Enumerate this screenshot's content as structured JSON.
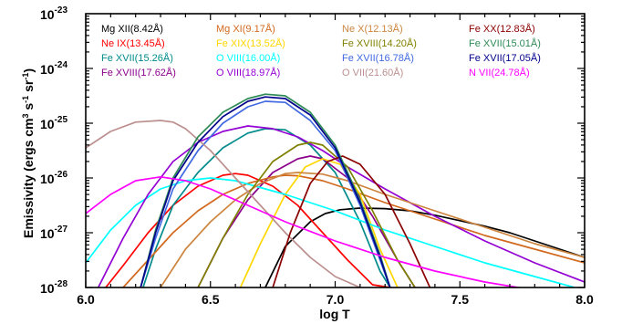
{
  "chart_data": {
    "type": "line",
    "title": "",
    "xlabel": "log T",
    "ylabel": "Emissivity (ergs cm^3 s^-1 sr^-1)",
    "ylabel_parts": {
      "main": "Emissivity (ergs cm",
      "exp3": "3",
      "mid": " s",
      "exp_m1a": "-1",
      "sp": " sr",
      "exp_m1b": "-1",
      "end": ")"
    },
    "xlim": [
      6.0,
      8.0
    ],
    "ylim_log10": [
      -28,
      -23
    ],
    "yscale": "log",
    "x_ticks": [
      {
        "value": 6.0,
        "label": "6.0"
      },
      {
        "value": 6.5,
        "label": "6.5"
      },
      {
        "value": 7.0,
        "label": "7.0"
      },
      {
        "value": 7.5,
        "label": "7.5"
      },
      {
        "value": 8.0,
        "label": "8.0"
      }
    ],
    "y_ticks": [
      {
        "exp": -28,
        "base": "10",
        "sup": "-28"
      },
      {
        "exp": -27,
        "base": "10",
        "sup": "-27"
      },
      {
        "exp": -26,
        "base": "10",
        "sup": "-26"
      },
      {
        "exp": -25,
        "base": "10",
        "sup": "-25"
      },
      {
        "exp": -24,
        "base": "10",
        "sup": "-24"
      },
      {
        "exp": -23,
        "base": "10",
        "sup": "-23"
      }
    ],
    "legend_position": "top (4 columns inside plot)",
    "series": [
      {
        "name": "Mg XII(8.42Å)",
        "color": "#000000",
        "x": [
          6.72,
          6.8,
          6.9,
          6.96,
          7.02,
          7.1,
          7.2,
          7.3,
          7.4,
          7.5,
          7.6,
          7.7,
          7.8,
          7.9,
          8.0
        ],
        "log10y": [
          -28.0,
          -27.25,
          -26.8,
          -26.65,
          -26.58,
          -26.55,
          -26.56,
          -26.6,
          -26.68,
          -26.78,
          -26.88,
          -27.0,
          -27.15,
          -27.3,
          -27.45
        ]
      },
      {
        "name": "Ne IX(13.45Å)",
        "color": "#ff0000",
        "x": [
          6.08,
          6.15,
          6.25,
          6.35,
          6.45,
          6.55,
          6.6,
          6.65,
          6.75,
          6.85,
          6.95,
          7.05,
          7.15,
          7.22
        ],
        "log10y": [
          -28.0,
          -27.6,
          -27.0,
          -26.5,
          -26.15,
          -25.95,
          -25.92,
          -25.95,
          -26.15,
          -26.5,
          -27.0,
          -27.5,
          -27.95,
          -28.0
        ]
      },
      {
        "name": "Fe XVII(15.26Å)",
        "color": "#008b8b",
        "x": [
          6.23,
          6.28,
          6.35,
          6.45,
          6.55,
          6.65,
          6.72,
          6.8,
          6.9,
          7.0,
          7.1,
          7.18,
          7.22
        ],
        "log10y": [
          -28.0,
          -27.3,
          -26.5,
          -25.9,
          -25.45,
          -25.18,
          -25.1,
          -25.12,
          -25.4,
          -25.9,
          -26.8,
          -27.7,
          -28.0
        ]
      },
      {
        "name": "Fe XVIII(17.62Å)",
        "color": "#8b008b",
        "x": [
          6.45,
          6.55,
          6.65,
          6.75,
          6.85,
          6.9,
          6.95,
          7.05,
          7.15,
          7.25,
          7.32
        ],
        "log10y": [
          -28.0,
          -27.1,
          -26.4,
          -25.9,
          -25.65,
          -25.6,
          -25.65,
          -26.0,
          -26.7,
          -27.5,
          -28.0
        ]
      },
      {
        "name": "Mg XI(9.17Å)",
        "color": "#d2691e",
        "x": [
          6.15,
          6.25,
          6.35,
          6.45,
          6.55,
          6.65,
          6.75,
          6.8,
          6.85,
          6.95,
          7.05,
          7.2,
          7.4,
          7.6,
          7.8,
          8.0
        ],
        "log10y": [
          -28.0,
          -27.5,
          -27.0,
          -26.6,
          -26.3,
          -26.1,
          -25.98,
          -25.95,
          -25.96,
          -26.05,
          -26.2,
          -26.45,
          -26.75,
          -27.05,
          -27.3,
          -27.55
        ]
      },
      {
        "name": "Fe XIX(13.52Å)",
        "color": "#ffd700",
        "x": [
          6.62,
          6.7,
          6.8,
          6.88,
          6.95,
          7.02,
          7.1,
          7.18,
          7.25
        ],
        "log10y": [
          -28.0,
          -27.2,
          -26.3,
          -25.8,
          -25.65,
          -25.75,
          -26.3,
          -27.3,
          -28.0
        ]
      },
      {
        "name": "O VIII(16.00Å)",
        "color": "#00ffff",
        "x": [
          6.0,
          6.1,
          6.2,
          6.3,
          6.4,
          6.5,
          6.6,
          6.8,
          7.0,
          7.2,
          7.4,
          7.6,
          7.8,
          8.0
        ],
        "log10y": [
          -27.55,
          -26.95,
          -26.5,
          -26.2,
          -26.05,
          -26.0,
          -26.05,
          -26.3,
          -26.6,
          -26.95,
          -27.25,
          -27.55,
          -27.8,
          -28.05
        ]
      },
      {
        "name": "O VIII(18.97Å)",
        "color": "#9400d3",
        "x": [
          6.05,
          6.15,
          6.25,
          6.35,
          6.45,
          6.55,
          6.65,
          6.75,
          6.85,
          6.95,
          7.05,
          7.2,
          7.4,
          7.6,
          7.8,
          8.0
        ],
        "log10y": [
          -28.0,
          -27.1,
          -26.3,
          -25.7,
          -25.35,
          -25.15,
          -25.05,
          -25.1,
          -25.25,
          -25.5,
          -25.8,
          -26.2,
          -26.7,
          -27.15,
          -27.55,
          -27.9
        ]
      },
      {
        "name": "Ne X(12.13Å)",
        "color": "#cd853f",
        "x": [
          6.3,
          6.4,
          6.5,
          6.6,
          6.7,
          6.8,
          6.85,
          6.95,
          7.05,
          7.2,
          7.4,
          7.6,
          7.8,
          8.0
        ],
        "log10y": [
          -28.0,
          -27.3,
          -26.8,
          -26.4,
          -26.1,
          -25.92,
          -25.9,
          -25.93,
          -26.05,
          -26.3,
          -26.6,
          -26.9,
          -27.2,
          -27.45
        ]
      },
      {
        "name": "Fe XVIII(14.20Å)",
        "color": "#808000",
        "x": [
          6.45,
          6.55,
          6.65,
          6.75,
          6.85,
          6.9,
          6.95,
          7.05,
          7.15,
          7.25,
          7.32
        ],
        "log10y": [
          -28.0,
          -27.1,
          -26.3,
          -25.7,
          -25.4,
          -25.35,
          -25.4,
          -25.8,
          -26.6,
          -27.5,
          -28.0
        ]
      },
      {
        "name": "Fe XVII(16.78Å)",
        "color": "#4169e1",
        "x": [
          6.22,
          6.28,
          6.35,
          6.45,
          6.55,
          6.65,
          6.72,
          6.8,
          6.9,
          7.0,
          7.1,
          7.18,
          7.22
        ],
        "log10y": [
          -28.0,
          -27.1,
          -26.2,
          -25.5,
          -25.0,
          -24.7,
          -24.6,
          -24.62,
          -24.95,
          -25.5,
          -26.5,
          -27.5,
          -28.0
        ]
      },
      {
        "name": "O VII(21.60Å)",
        "color": "#bc8f8f",
        "x": [
          6.0,
          6.1,
          6.2,
          6.3,
          6.35,
          6.4,
          6.5,
          6.6,
          6.7,
          6.8,
          6.9,
          7.0,
          7.1
        ],
        "log10y": [
          -25.45,
          -25.15,
          -24.98,
          -24.95,
          -24.98,
          -25.1,
          -25.5,
          -26.0,
          -26.5,
          -27.0,
          -27.45,
          -27.8,
          -28.0
        ]
      },
      {
        "name": "Fe XX(12.83Å)",
        "color": "#8b0000",
        "x": [
          6.75,
          6.82,
          6.9,
          6.97,
          7.03,
          7.1,
          7.2,
          7.3,
          7.38
        ],
        "log10y": [
          -28.0,
          -27.0,
          -26.1,
          -25.7,
          -25.6,
          -25.75,
          -26.3,
          -27.2,
          -28.0
        ]
      },
      {
        "name": "Fe XVII(15.01Å)",
        "color": "#2e8b57",
        "x": [
          6.22,
          6.28,
          6.35,
          6.45,
          6.55,
          6.65,
          6.72,
          6.8,
          6.9,
          7.0,
          7.1,
          7.18,
          7.22
        ],
        "log10y": [
          -28.0,
          -26.95,
          -26.0,
          -25.25,
          -24.8,
          -24.55,
          -24.47,
          -24.5,
          -24.8,
          -25.4,
          -26.4,
          -27.4,
          -28.0
        ]
      },
      {
        "name": "Fe XVII(17.05Å)",
        "color": "#00008b",
        "x": [
          6.22,
          6.28,
          6.35,
          6.45,
          6.55,
          6.65,
          6.72,
          6.8,
          6.9,
          7.0,
          7.1,
          7.18,
          7.22
        ],
        "log10y": [
          -28.0,
          -27.0,
          -26.05,
          -25.35,
          -24.88,
          -24.6,
          -24.52,
          -24.55,
          -24.85,
          -25.45,
          -26.45,
          -27.45,
          -28.0
        ]
      },
      {
        "name": "N VII(24.78Å)",
        "color": "#ff00ff",
        "x": [
          6.0,
          6.1,
          6.2,
          6.3,
          6.4,
          6.5,
          6.6,
          6.8,
          7.0,
          7.2,
          7.4,
          7.6,
          7.8,
          8.0
        ],
        "log10y": [
          -26.65,
          -26.3,
          -26.05,
          -25.98,
          -26.05,
          -26.2,
          -26.4,
          -26.8,
          -27.15,
          -27.45,
          -27.7,
          -27.9,
          -28.05,
          -28.15
        ]
      }
    ]
  }
}
